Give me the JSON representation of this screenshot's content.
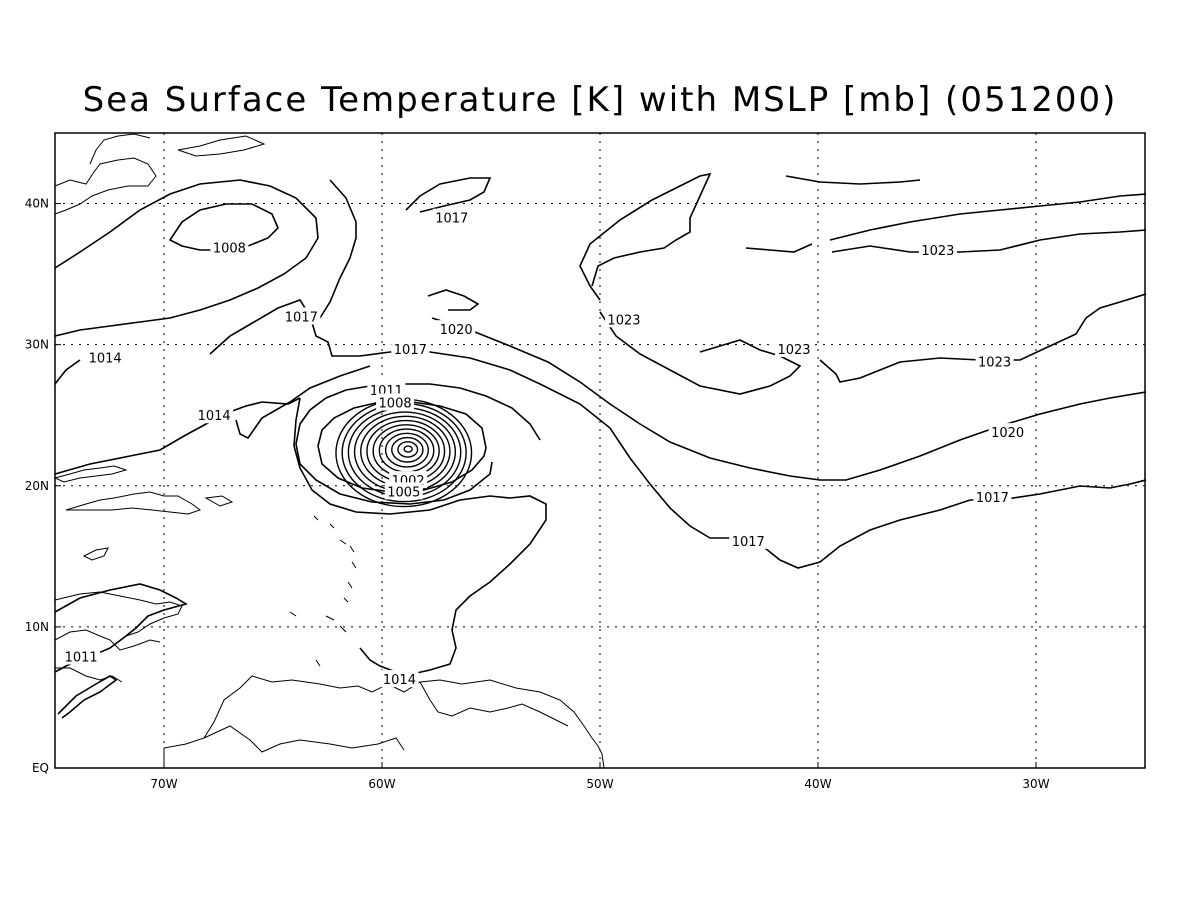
{
  "title": "Sea Surface Temperature [K] with MSLP [mb] (051200)",
  "map": {
    "lon_range": [
      -75,
      -25
    ],
    "lat_range": [
      0,
      45
    ],
    "grid_lines": true,
    "x_ticks": [
      {
        "lon": -70,
        "label": "70W"
      },
      {
        "lon": -60,
        "label": "60W"
      },
      {
        "lon": -50,
        "label": "50W"
      },
      {
        "lon": -40,
        "label": "40W"
      },
      {
        "lon": -30,
        "label": "30W"
      }
    ],
    "y_ticks": [
      {
        "lat": 0,
        "label": "EQ"
      },
      {
        "lat": 10,
        "label": "10N"
      },
      {
        "lat": 20,
        "label": "20N"
      },
      {
        "lat": 30,
        "label": "30N"
      },
      {
        "lat": 40,
        "label": "40N"
      }
    ],
    "low_center": {
      "lon": -58.8,
      "lat": 22.6
    },
    "contour_labels": [
      {
        "text": "1008",
        "lon": -67.0,
        "lat": 36.9
      },
      {
        "text": "1017",
        "lon": -56.8,
        "lat": 39.0
      },
      {
        "text": "1017",
        "lon": -63.7,
        "lat": 32.0
      },
      {
        "text": "1014",
        "lon": -72.7,
        "lat": 29.1
      },
      {
        "text": "1020",
        "lon": -56.6,
        "lat": 31.1
      },
      {
        "text": "1023",
        "lon": -48.9,
        "lat": 31.8
      },
      {
        "text": "1023",
        "lon": -34.5,
        "lat": 36.7
      },
      {
        "text": "1017",
        "lon": -58.7,
        "lat": 29.7
      },
      {
        "text": "1023",
        "lon": -41.1,
        "lat": 29.7
      },
      {
        "text": "1023",
        "lon": -31.9,
        "lat": 28.8
      },
      {
        "text": "1011",
        "lon": -59.8,
        "lat": 26.8
      },
      {
        "text": "1008",
        "lon": -59.4,
        "lat": 25.9
      },
      {
        "text": "1014",
        "lon": -67.7,
        "lat": 25.0
      },
      {
        "text": "1020",
        "lon": -31.3,
        "lat": 23.8
      },
      {
        "text": "1002",
        "lon": -58.8,
        "lat": 20.4
      },
      {
        "text": "1005",
        "lon": -59.0,
        "lat": 19.6
      },
      {
        "text": "1017",
        "lon": -32.0,
        "lat": 19.2
      },
      {
        "text": "1017",
        "lon": -43.2,
        "lat": 16.1
      },
      {
        "text": "1011",
        "lon": -73.8,
        "lat": 7.9
      },
      {
        "text": "1014",
        "lon": -59.2,
        "lat": 6.3
      }
    ]
  }
}
